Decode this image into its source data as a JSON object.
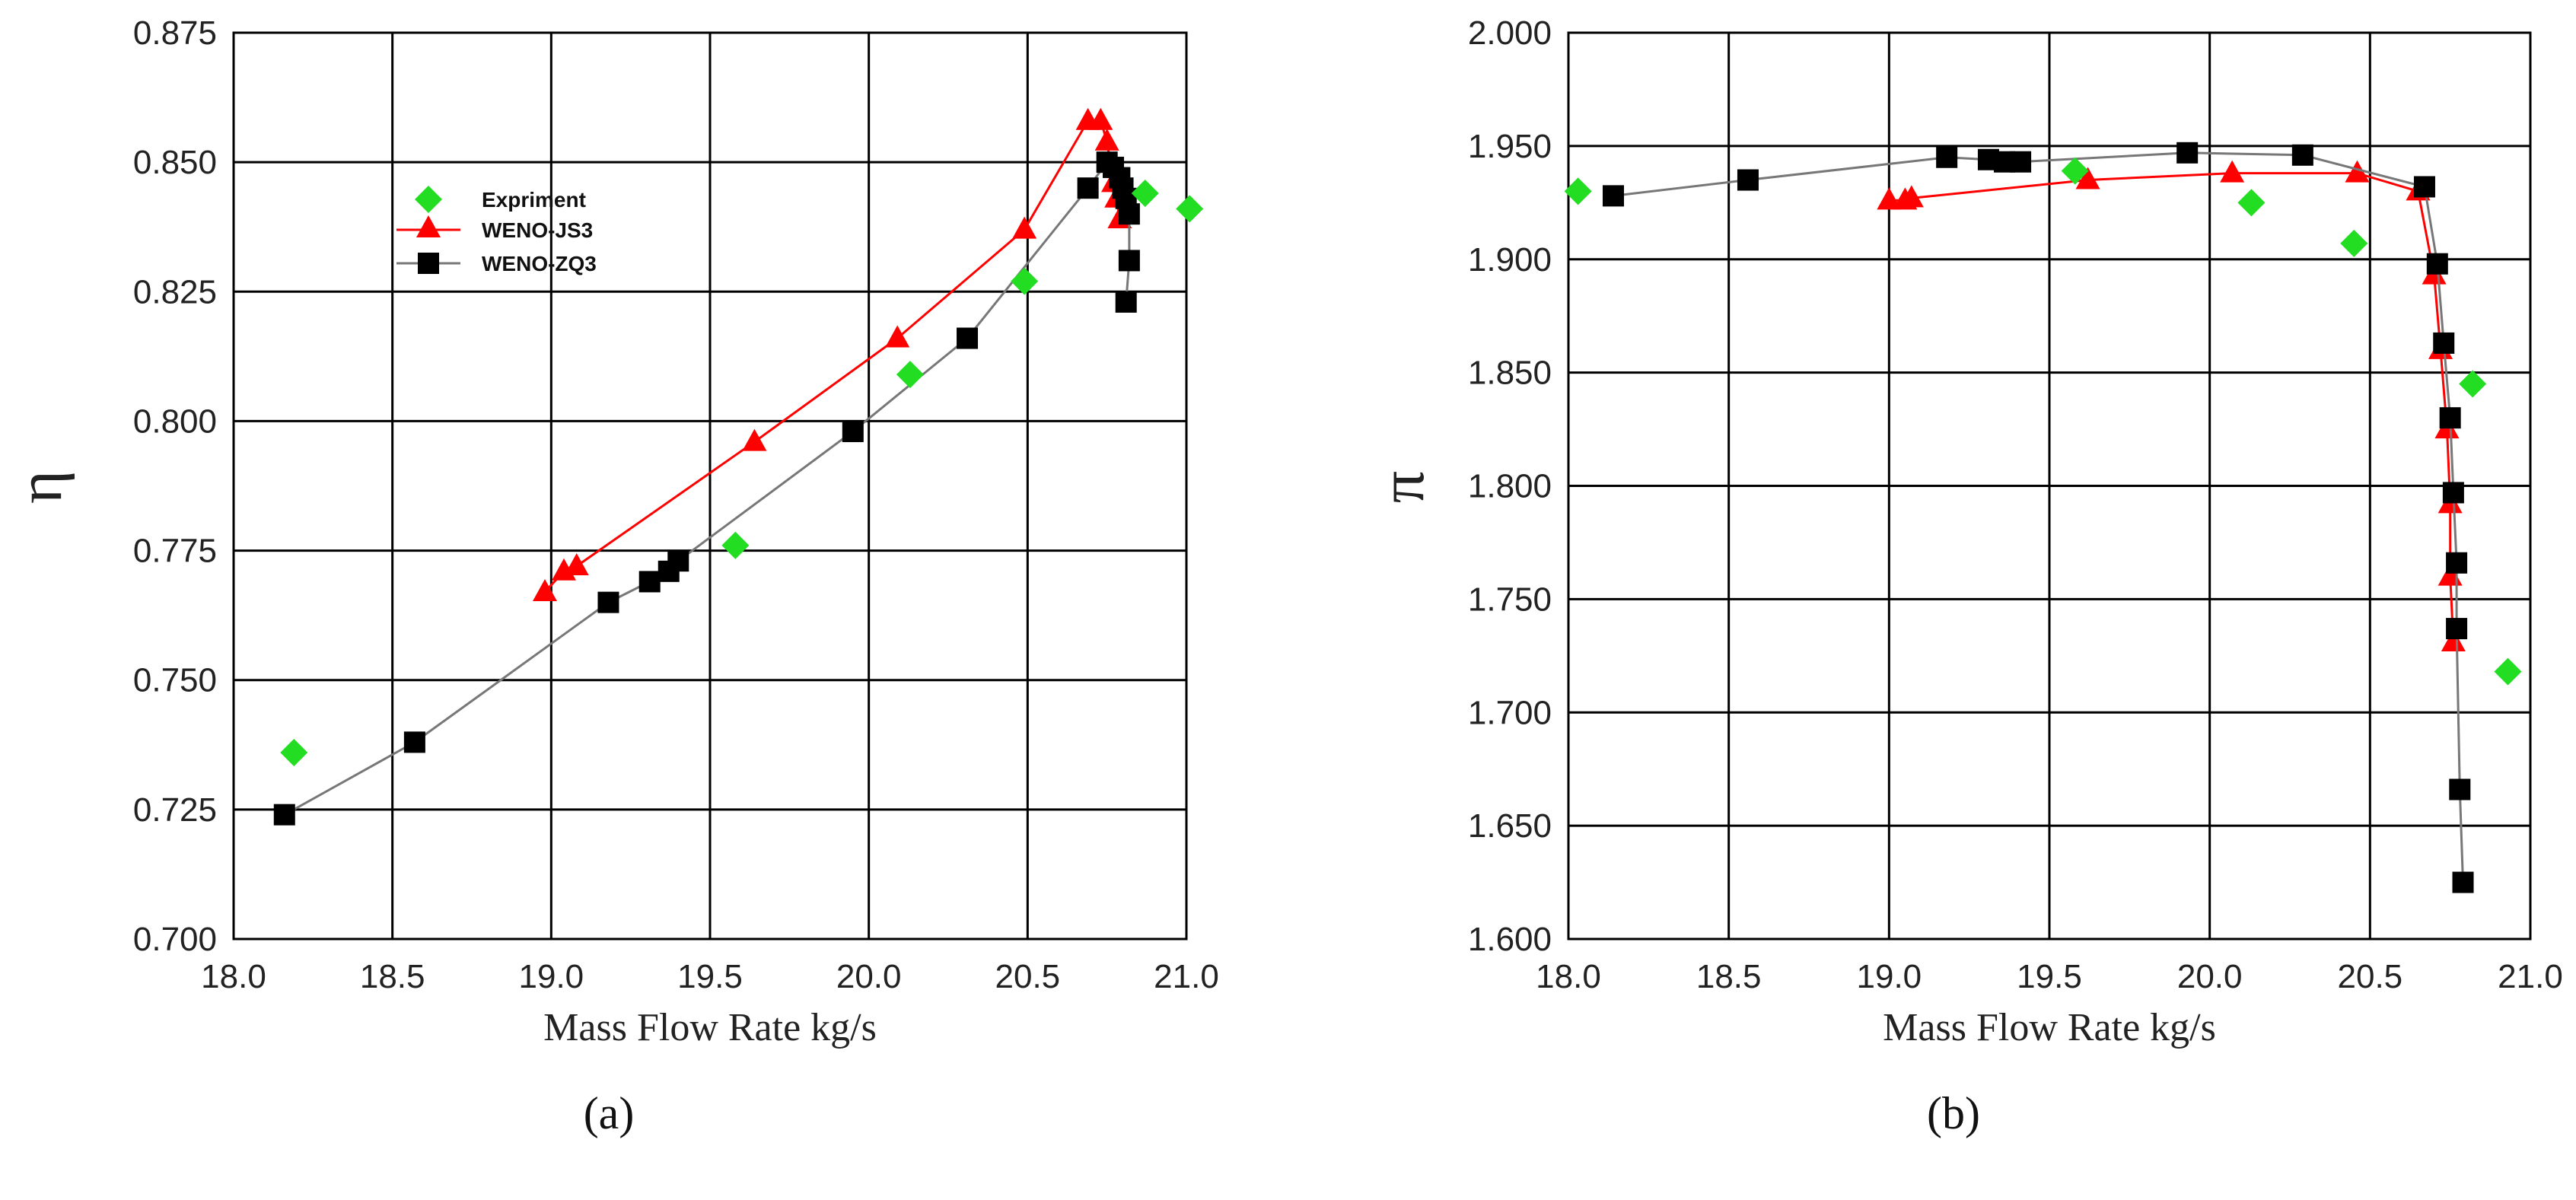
{
  "captions": {
    "a": "(a)",
    "b": "(b)"
  },
  "colors": {
    "experiment": "#22dd22",
    "js3": "#ff0000",
    "zq3": "#000000",
    "zq3_line": "#777777",
    "grid": "#000000"
  },
  "chart_data": [
    {
      "type": "scatter",
      "xlabel": "Mass Flow Rate kg/s",
      "ylabel": "η",
      "xlim": [
        18.0,
        21.0
      ],
      "ylim": [
        0.7,
        0.875
      ],
      "xticks": [
        "18.0",
        "18.5",
        "19.0",
        "19.5",
        "20.0",
        "20.5",
        "21.0"
      ],
      "yticks": [
        "0.700",
        "0.725",
        "0.750",
        "0.775",
        "0.800",
        "0.825",
        "0.850",
        "0.875"
      ],
      "grid": true,
      "legend": "upper-left",
      "series": [
        {
          "name": "Expriment",
          "marker": "diamond",
          "line": false,
          "x": [
            18.19,
            19.58,
            20.13,
            20.49,
            20.87,
            21.01
          ],
          "y": [
            0.736,
            0.776,
            0.809,
            0.827,
            0.844,
            0.841
          ]
        },
        {
          "name": "WENO-JS3",
          "marker": "triangle",
          "line": true,
          "x": [
            18.98,
            19.04,
            19.08,
            19.64,
            20.09,
            20.49,
            20.69,
            20.73,
            20.75,
            20.77,
            20.78,
            20.79
          ],
          "y": [
            0.767,
            0.771,
            0.772,
            0.796,
            0.816,
            0.837,
            0.858,
            0.858,
            0.854,
            0.846,
            0.843,
            0.839
          ]
        },
        {
          "name": "WENO-ZQ3",
          "marker": "square",
          "line": true,
          "x": [
            18.16,
            18.57,
            19.18,
            19.31,
            19.37,
            19.4,
            19.95,
            20.31,
            20.69,
            20.75,
            20.77,
            20.79,
            20.8,
            20.81,
            20.82,
            20.82,
            20.81
          ],
          "y": [
            0.724,
            0.738,
            0.765,
            0.769,
            0.771,
            0.773,
            0.798,
            0.816,
            0.845,
            0.85,
            0.849,
            0.847,
            0.845,
            0.843,
            0.84,
            0.831,
            0.823
          ]
        }
      ]
    },
    {
      "type": "scatter",
      "xlabel": "Mass Flow Rate kg/s",
      "ylabel": "π",
      "xlim": [
        18.0,
        21.0
      ],
      "ylim": [
        1.6,
        2.0
      ],
      "xticks": [
        "18.0",
        "18.5",
        "19.0",
        "19.5",
        "20.0",
        "20.5",
        "21.0"
      ],
      "yticks": [
        "1.600",
        "1.650",
        "1.700",
        "1.750",
        "1.800",
        "1.850",
        "1.900",
        "1.950",
        "2.000"
      ],
      "grid": true,
      "legend": "none",
      "series": [
        {
          "name": "Expriment",
          "marker": "diamond",
          "line": false,
          "x": [
            18.03,
            19.58,
            20.13,
            20.45,
            20.82,
            20.93
          ],
          "y": [
            1.93,
            1.939,
            1.925,
            1.907,
            1.845,
            1.718
          ]
        },
        {
          "name": "WENO-JS3",
          "marker": "triangle",
          "line": true,
          "x": [
            19.0,
            19.05,
            19.07,
            19.62,
            20.07,
            20.46,
            20.65,
            20.7,
            20.72,
            20.74,
            20.75,
            20.75,
            20.76
          ],
          "y": [
            1.926,
            1.926,
            1.927,
            1.935,
            1.938,
            1.938,
            1.93,
            1.893,
            1.86,
            1.825,
            1.792,
            1.76,
            1.731
          ]
        },
        {
          "name": "WENO-ZQ3",
          "marker": "square",
          "line": true,
          "x": [
            18.14,
            18.56,
            19.18,
            19.31,
            19.36,
            19.41,
            19.93,
            20.29,
            20.67,
            20.71,
            20.73,
            20.75,
            20.76,
            20.77,
            20.77,
            20.78,
            20.79
          ],
          "y": [
            1.928,
            1.935,
            1.945,
            1.944,
            1.943,
            1.943,
            1.947,
            1.946,
            1.932,
            1.898,
            1.863,
            1.83,
            1.797,
            1.766,
            1.737,
            1.666,
            1.625
          ]
        }
      ]
    }
  ]
}
